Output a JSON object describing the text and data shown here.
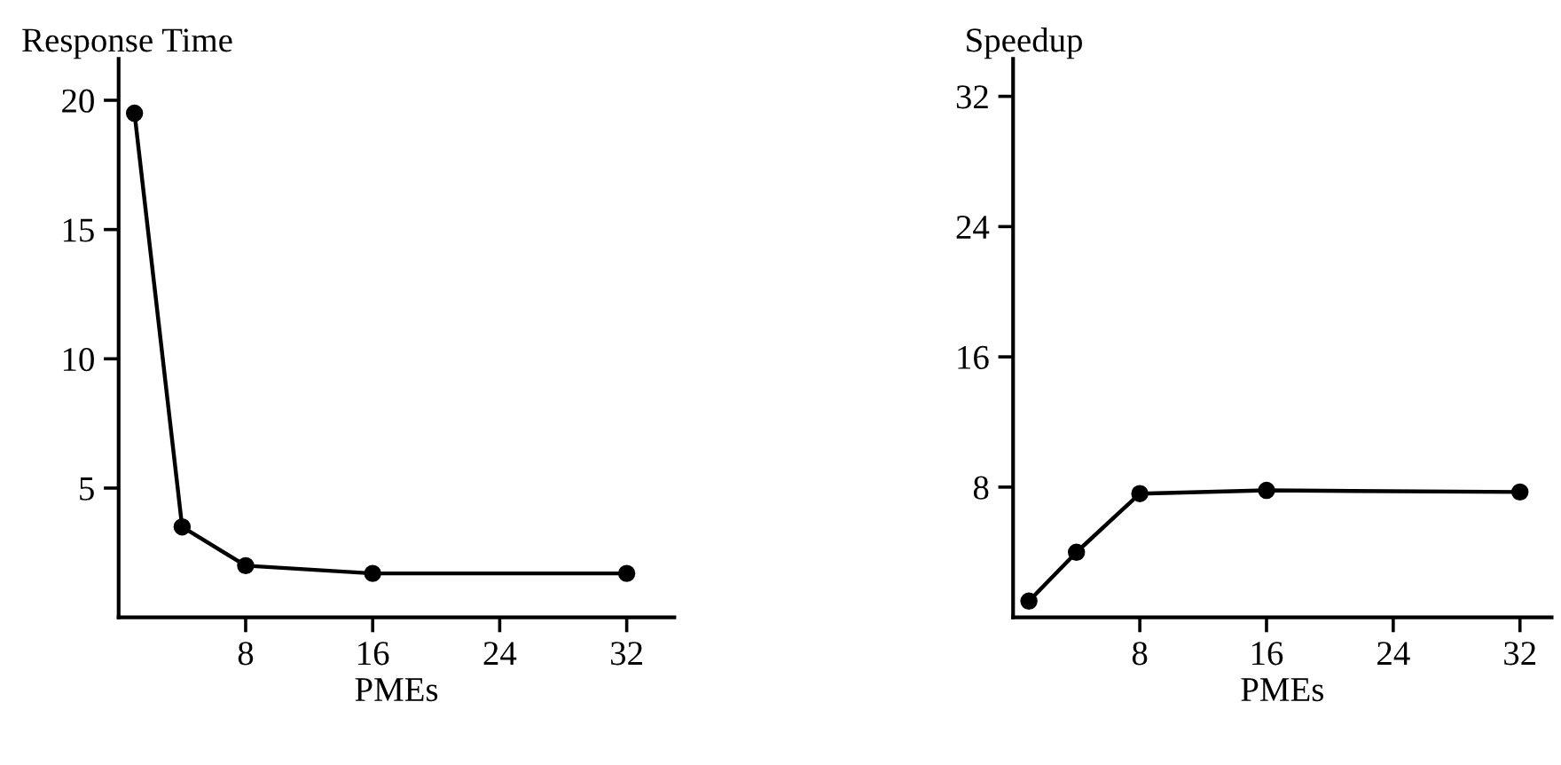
{
  "chart_data": [
    {
      "type": "line",
      "ylabel": "Response Time",
      "xlabel": "PMEs",
      "x": [
        1,
        4,
        8,
        16,
        32
      ],
      "series": [
        {
          "color": "#000000",
          "values": [
            19.5,
            3.5,
            2.0,
            1.7,
            1.7
          ]
        }
      ],
      "xlim": [
        0,
        35
      ],
      "xticks": [
        8,
        16,
        24,
        32
      ],
      "ylim": [
        0,
        21.6
      ],
      "yticks": [
        5,
        10,
        15,
        20
      ],
      "marker": "circle",
      "line_style": "solid",
      "grid": false
    },
    {
      "type": "line",
      "ylabel": "Speedup",
      "xlabel": "PMEs",
      "x": [
        1,
        4,
        8,
        16,
        32
      ],
      "series": [
        {
          "color": "#000000",
          "values": [
            1.0,
            4.0,
            7.6,
            7.8,
            7.7
          ]
        }
      ],
      "xlim": [
        0,
        34
      ],
      "xticks": [
        8,
        16,
        24,
        32
      ],
      "ylim": [
        0,
        34.3
      ],
      "yticks": [
        8,
        16,
        24,
        32
      ],
      "marker": "circle",
      "line_style": "solid",
      "grid": false
    }
  ]
}
